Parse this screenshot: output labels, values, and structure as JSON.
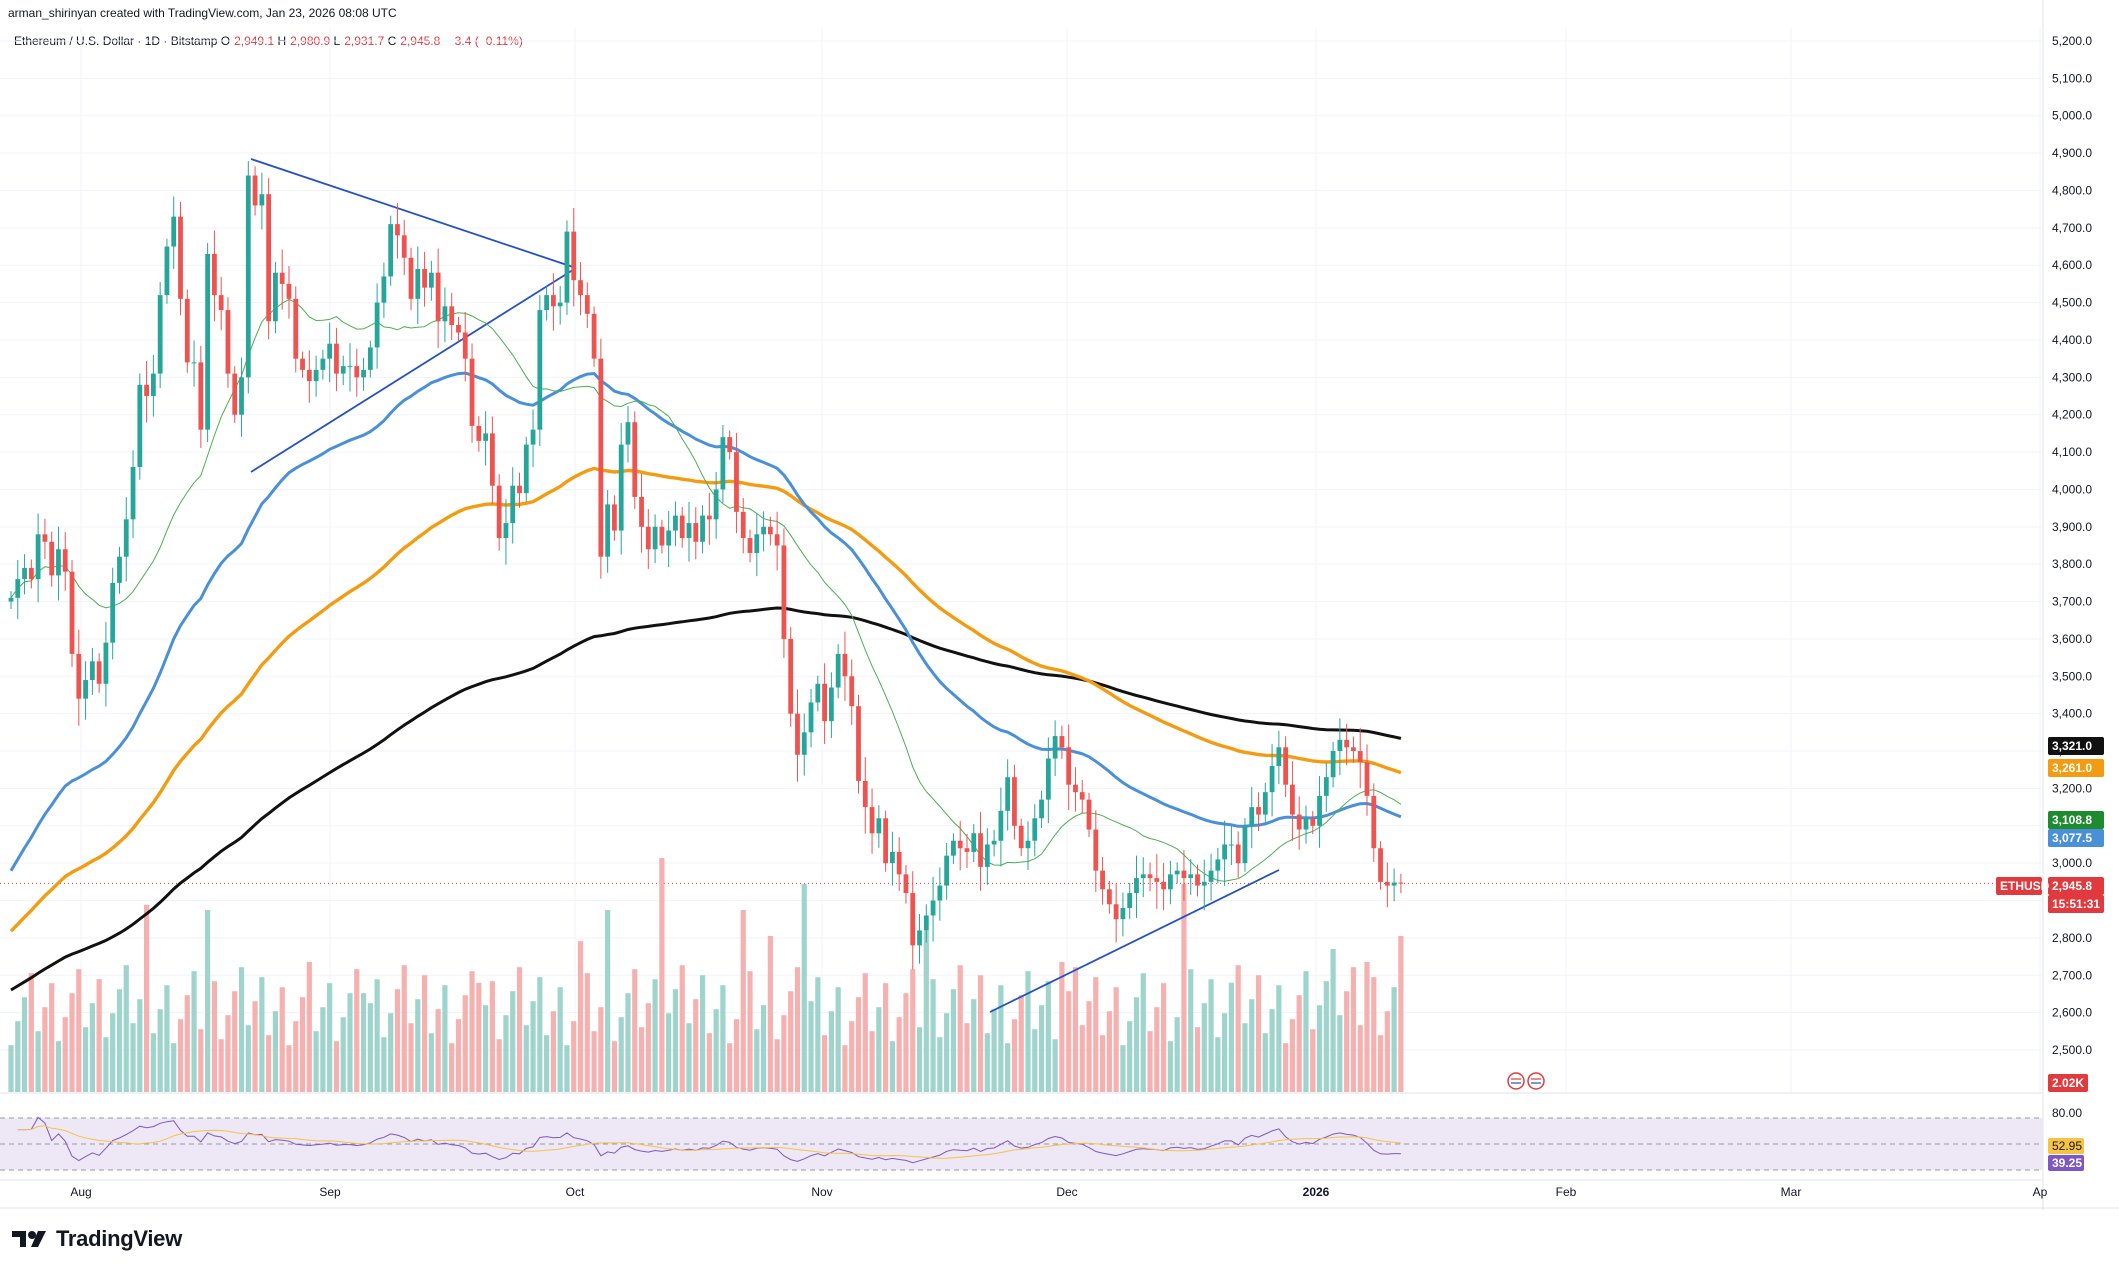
{
  "header": {
    "credit": "arman_shirinyan created with TradingView.com, Jan 23, 2026 08:08 UTC",
    "symbol": "Ethereum / U.S. Dollar · 1D · Bitstamp",
    "open_label": "O",
    "open": "2,949.1",
    "high_label": "H",
    "high": "2,980.9",
    "low_label": "L",
    "low": "2,931.7",
    "close_label": "C",
    "close": "2,945.8",
    "change": "−3.4 (−0.11%)"
  },
  "brand": {
    "name": "TradingView"
  },
  "colors": {
    "up": "#26a69a",
    "down": "#ef5350",
    "vol_up": "#9fd4cd",
    "vol_down": "#f5b1af",
    "sma_short": "#4caf50",
    "ema_blue": "#4a90d9",
    "ema_orange": "#f39c12",
    "ema_black": "#111111",
    "trendline": "#2451c4",
    "rsi_line": "#7e57c2",
    "rsi_ma": "#f6c343",
    "rsi_band": "#ede7f6"
  },
  "chart_data": {
    "type": "candlestick",
    "title": "Ethereum / U.S. Dollar · 1D · Bitstamp",
    "timeframe": "1D",
    "y_axis": {
      "min": 2400,
      "max": 5250,
      "step": 100,
      "scale": "linear",
      "ticks": [
        "2,500.0",
        "2,600.0",
        "2,700.0",
        "2,800.0",
        "2,900.0",
        "3,000.0",
        "3,100.0",
        "3,200.0",
        "3,300.0",
        "3,400.0",
        "3,500.0",
        "3,600.0",
        "3,700.0",
        "3,800.0",
        "3,900.0",
        "4,000.0",
        "4,100.0",
        "4,200.0",
        "4,300.0",
        "4,400.0",
        "4,500.0",
        "4,600.0",
        "4,700.0",
        "4,800.0",
        "4,900.0",
        "5,000.0",
        "5,100.0",
        "5,200.0"
      ]
    },
    "x_axis": {
      "labels": [
        "Aug",
        "Sep",
        "Oct",
        "Nov",
        "Dec",
        "2026",
        "Feb",
        "Mar",
        "Ap"
      ]
    },
    "closes": [
      3710,
      3760,
      3790,
      3760,
      3880,
      3860,
      3770,
      3840,
      3780,
      3560,
      3440,
      3490,
      3540,
      3480,
      3590,
      3750,
      3820,
      3920,
      4060,
      4280,
      4250,
      4310,
      4520,
      4650,
      4730,
      4510,
      4340,
      4340,
      4160,
      4630,
      4520,
      4480,
      4310,
      4200,
      4300,
      4840,
      4760,
      4790,
      4450,
      4580,
      4550,
      4510,
      4350,
      4320,
      4290,
      4320,
      4350,
      4390,
      4310,
      4330,
      4330,
      4300,
      4320,
      4380,
      4500,
      4570,
      4710,
      4680,
      4620,
      4510,
      4590,
      4540,
      4580,
      4450,
      4490,
      4440,
      4420,
      4350,
      4170,
      4130,
      4150,
      4010,
      3870,
      3910,
      4010,
      3990,
      4120,
      4160,
      4480,
      4520,
      4490,
      4500,
      4690,
      4560,
      4520,
      4470,
      4350,
      3820,
      3960,
      3890,
      4120,
      4180,
      3980,
      3900,
      3840,
      3900,
      3850,
      3890,
      3930,
      3870,
      3910,
      3860,
      3930,
      3920,
      4000,
      4140,
      4100,
      3940,
      3870,
      3830,
      3880,
      3900,
      3880,
      3850,
      3600,
      3400,
      3290,
      3350,
      3430,
      3480,
      3380,
      3470,
      3560,
      3500,
      3420,
      3220,
      3150,
      3080,
      3120,
      3000,
      3030,
      2970,
      2920,
      2780,
      2820,
      2860,
      2900,
      2940,
      3020,
      3060,
      3040,
      3030,
      3080,
      2990,
      3050,
      3060,
      3140,
      3230,
      3100,
      3040,
      3060,
      3120,
      3170,
      3280,
      3340,
      3310,
      3210,
      3190,
      3170,
      3090,
      2980,
      2930,
      2890,
      2850,
      2880,
      2920,
      2960,
      2970,
      2960,
      2950,
      2930,
      2970,
      2980,
      2960,
      2970,
      2940,
      2950,
      2980,
      3010,
      3050,
      3050,
      3000,
      3100,
      3150,
      3130,
      3190,
      3260,
      3310,
      3210,
      3130,
      3090,
      3120,
      3100,
      3180,
      3230,
      3300,
      3330,
      3310,
      3300,
      3270,
      3180,
      3040,
      2950,
      2940,
      2948,
      2945.8
    ],
    "overlays": [
      {
        "name": "SMA short (green)",
        "last": null
      },
      {
        "name": "EMA (blue)",
        "last": "3,077.5"
      },
      {
        "name": "EMA (orange)",
        "last": "3,261.0"
      },
      {
        "name": "EMA (black)",
        "last": "3,321.0"
      }
    ],
    "price_tags": [
      {
        "label": "3,321.0",
        "color": "#111111"
      },
      {
        "label": "3,261.0",
        "color": "#f39c12"
      },
      {
        "label": "3,108.8",
        "color": "#1e8c2e"
      },
      {
        "label": "3,077.5",
        "color": "#4a90d9"
      },
      {
        "label": "2,945.8",
        "color": "#e03a3e"
      }
    ],
    "last_price": {
      "symbol": "ETHUSD",
      "value": "2,945.8",
      "countdown": "15:51:31"
    },
    "volume": {
      "last_label": "2.02K"
    },
    "rsi": {
      "upper": "80.00",
      "ma_value": "52.95",
      "value": "39.25"
    }
  }
}
